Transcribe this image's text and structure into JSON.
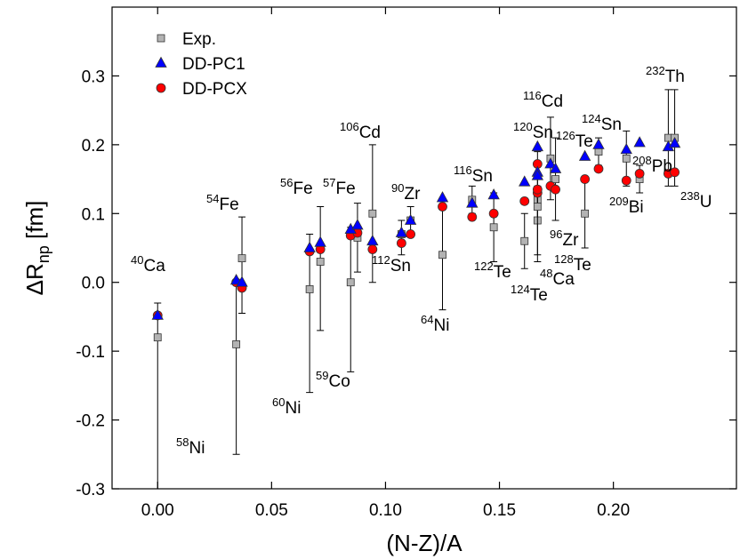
{
  "chart_data": {
    "type": "scatter",
    "x_label": "(N-Z)/A",
    "y_label": {
      "main": "ΔR",
      "sub": "np",
      "unit": "[fm]"
    },
    "xlim": [
      -0.02,
      0.254
    ],
    "ylim": [
      -0.3,
      0.4
    ],
    "xticks": [
      {
        "value": 0,
        "label": "0.00"
      },
      {
        "value": 0.05,
        "label": "0.05"
      },
      {
        "value": 0.1,
        "label": "0.10"
      },
      {
        "value": 0.15,
        "label": "0.15"
      },
      {
        "value": 0.2,
        "label": "0.20"
      }
    ],
    "yticks": [
      -0.3,
      -0.2,
      -0.1,
      {
        "value": 0,
        "label": "0.0"
      },
      0.1,
      0.2,
      0.3
    ],
    "legend": "upper left",
    "x": [
      0,
      0.0345,
      0.037,
      0.0667,
      0.0714,
      0.0847,
      0.0877,
      0.0943,
      0.107,
      0.111,
      0.125,
      0.138,
      0.1475,
      0.161,
      0.1667,
      0.1667,
      0.1667,
      0.1724,
      0.1746,
      0.1875,
      0.1935,
      0.2057,
      0.2115,
      0.2241,
      0.2269
    ],
    "nuclei": [
      {
        "mass": "40",
        "symbol": "Ca"
      },
      {
        "mass": "58",
        "symbol": "Ni"
      },
      {
        "mass": "54",
        "symbol": "Fe"
      },
      {
        "mass": "60",
        "symbol": "Ni"
      },
      {
        "mass": "56",
        "symbol": "Fe"
      },
      {
        "mass": "59",
        "symbol": "Co"
      },
      {
        "mass": "57",
        "symbol": "Fe"
      },
      {
        "mass": "106",
        "symbol": "Cd"
      },
      {
        "mass": "112",
        "symbol": "Sn"
      },
      {
        "mass": "90",
        "symbol": "Zr"
      },
      {
        "mass": "64",
        "symbol": "Ni"
      },
      {
        "mass": "116",
        "symbol": "Sn"
      },
      {
        "mass": "122",
        "symbol": "Te"
      },
      {
        "mass": "124",
        "symbol": "Te"
      },
      {
        "mass": "48",
        "symbol": "Ca"
      },
      {
        "mass": "120",
        "symbol": "Sn"
      },
      {
        "mass": "96",
        "symbol": "Zr"
      },
      {
        "mass": "116",
        "symbol": "Cd"
      },
      {
        "mass": "126",
        "symbol": "Te"
      },
      {
        "mass": "128",
        "symbol": "Te"
      },
      {
        "mass": "124",
        "symbol": "Sn"
      },
      {
        "mass": "209",
        "symbol": "Bi"
      },
      {
        "mass": "208",
        "symbol": "Pb"
      },
      {
        "mass": "232",
        "symbol": "Th"
      },
      {
        "mass": "238",
        "symbol": "U"
      }
    ],
    "series": [
      {
        "name": "Exp.",
        "color": "#b3b3b3",
        "marker": "square",
        "values": [
          -0.08,
          -0.09,
          0.035,
          -0.01,
          0.03,
          0.0,
          0.065,
          0.1,
          0.07,
          0.09,
          0.04,
          0.12,
          0.08,
          0.06,
          0.12,
          0.09,
          0.11,
          0.18,
          0.15,
          0.1,
          0.19,
          0.18,
          0.15,
          0.21,
          0.21
        ],
        "low": [
          -0.3,
          -0.25,
          -0.045,
          -0.16,
          -0.07,
          -0.13,
          0.015,
          0.0,
          0.04,
          0.07,
          -0.04,
          0.1,
          0.03,
          0.02,
          0.09,
          0.04,
          0.03,
          0.12,
          0.09,
          0.05,
          0.17,
          0.14,
          0.13,
          0.14,
          0.14
        ],
        "high": [
          -0.03,
          0.0,
          0.095,
          0.07,
          0.11,
          0.08,
          0.115,
          0.2,
          0.09,
          0.11,
          0.12,
          0.14,
          0.13,
          0.1,
          0.15,
          0.14,
          0.19,
          0.24,
          0.21,
          0.15,
          0.21,
          0.22,
          0.17,
          0.28,
          0.28
        ]
      },
      {
        "name": "DD-PC1",
        "color": "#0000ff",
        "marker": "triangle",
        "values": [
          -0.048,
          0.003,
          0.0,
          0.05,
          0.058,
          0.077,
          0.083,
          0.06,
          0.072,
          0.09,
          0.123,
          0.115,
          0.127,
          0.146,
          0.16,
          0.197,
          0.155,
          0.172,
          0.165,
          0.183,
          0.2,
          0.193,
          0.203,
          0.197,
          0.202
        ]
      },
      {
        "name": "DD-PCX",
        "color": "#ff0000",
        "marker": "circle",
        "values": [
          -0.048,
          0.0,
          -0.008,
          0.045,
          0.048,
          0.068,
          0.072,
          0.048,
          0.057,
          0.07,
          0.11,
          0.095,
          0.1,
          0.118,
          0.13,
          0.172,
          0.135,
          0.14,
          0.135,
          0.15,
          0.165,
          0.148,
          0.158,
          0.158,
          0.16
        ]
      }
    ]
  }
}
